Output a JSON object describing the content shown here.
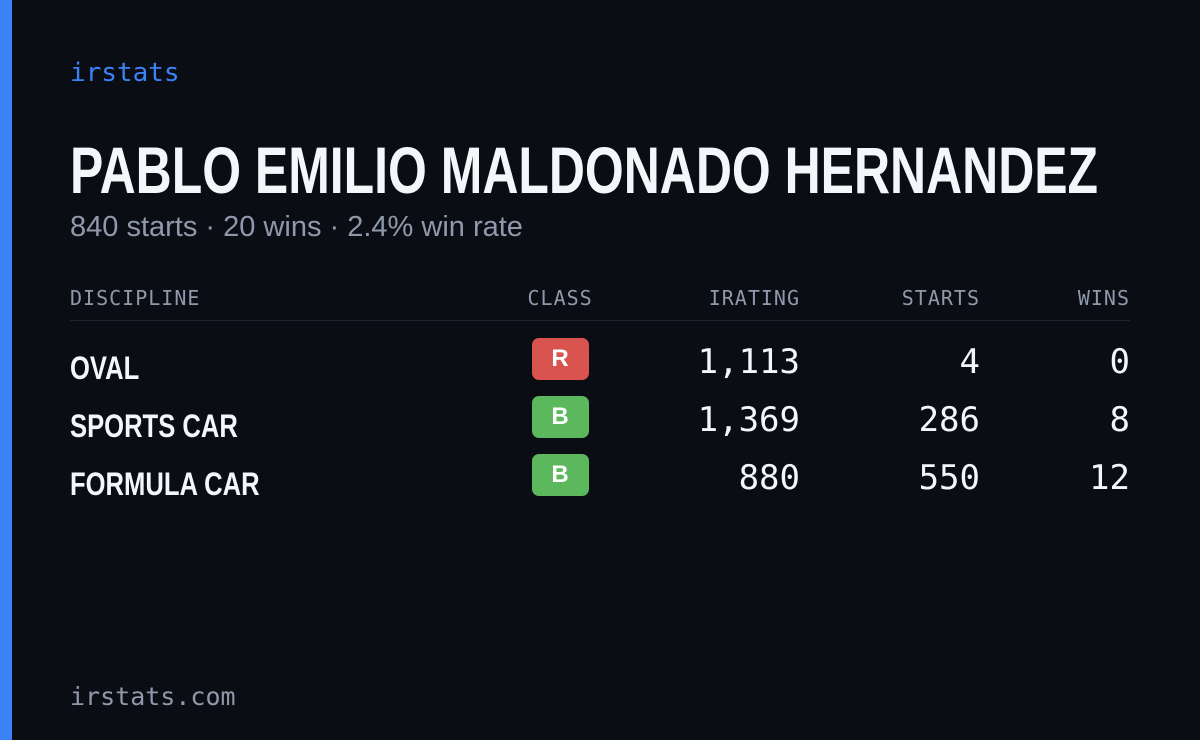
{
  "brand": "irstats",
  "title": "PABLO EMILIO MALDONADO HERNANDEZ",
  "summary": "840 starts · 20 wins · 2.4% win rate",
  "table": {
    "headers": [
      "DISCIPLINE",
      "CLASS",
      "IRATING",
      "STARTS",
      "WINS"
    ],
    "rows": [
      [
        "OVAL",
        "R",
        "1,113",
        "4",
        "0"
      ],
      [
        "SPORTS CAR",
        "B",
        "1,369",
        "286",
        "8"
      ],
      [
        "FORMULA CAR",
        "B",
        "880",
        "550",
        "12"
      ]
    ],
    "class_colors": {
      "R": "#d9534f",
      "B": "#5cb85c"
    }
  },
  "footer": "irstats.com"
}
